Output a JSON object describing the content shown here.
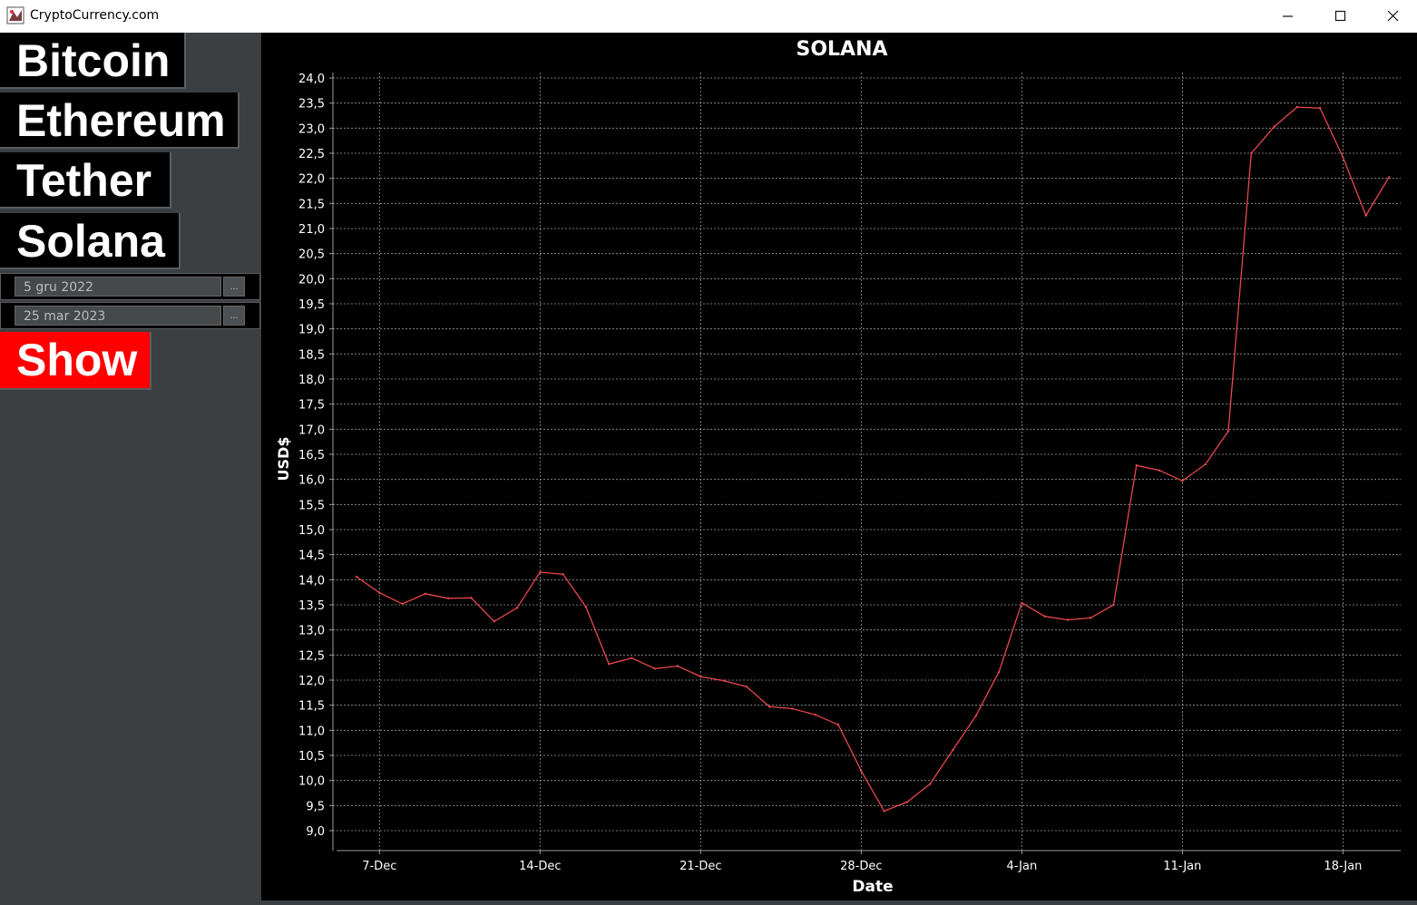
{
  "window": {
    "title": "CryptoCurrency.com",
    "controls": {
      "minimize": "—",
      "maximize": "☐",
      "close": "✕"
    }
  },
  "sidebar": {
    "coins": [
      "Bitcoin",
      "Ethereum",
      "Tether",
      "Solana"
    ],
    "date_from": "5 gru 2022",
    "date_to": "25 mar 2023",
    "picker_label": "...",
    "show_label": "Show"
  },
  "colors": {
    "line": "#e8474c",
    "background": "#000000",
    "sidebar": "#3c3f41",
    "show_button": "#ff0000"
  },
  "chart_data": {
    "type": "line",
    "title": "SOLANA",
    "xlabel": "Date",
    "ylabel": "USD$",
    "ylim": [
      9.0,
      24.0
    ],
    "y_ticks": [
      "9,0",
      "9,5",
      "10,0",
      "10,5",
      "11,0",
      "11,5",
      "12,0",
      "12,5",
      "13,0",
      "13,5",
      "14,0",
      "14,5",
      "15,0",
      "15,5",
      "16,0",
      "16,5",
      "17,0",
      "17,5",
      "18,0",
      "18,5",
      "19,0",
      "19,5",
      "20,0",
      "20,5",
      "21,0",
      "21,5",
      "22,0",
      "22,5",
      "23,0",
      "23,5",
      "24,0"
    ],
    "x_ticks": [
      "7-Dec",
      "14-Dec",
      "21-Dec",
      "28-Dec",
      "4-Jan",
      "11-Jan",
      "18-Jan"
    ],
    "grid": true,
    "series": [
      {
        "x": [
          "2022-12-06",
          "2022-12-07",
          "2022-12-08",
          "2022-12-09",
          "2022-12-10",
          "2022-12-11",
          "2022-12-12",
          "2022-12-13",
          "2022-12-14",
          "2022-12-15",
          "2022-12-16",
          "2022-12-17",
          "2022-12-18",
          "2022-12-19",
          "2022-12-20",
          "2022-12-21",
          "2022-12-22",
          "2022-12-23",
          "2022-12-24",
          "2022-12-25",
          "2022-12-26",
          "2022-12-27",
          "2022-12-28",
          "2022-12-29",
          "2022-12-30",
          "2022-12-31",
          "2023-01-01",
          "2023-01-02",
          "2023-01-03",
          "2023-01-04",
          "2023-01-05",
          "2023-01-06",
          "2023-01-07",
          "2023-01-08",
          "2023-01-09",
          "2023-01-10",
          "2023-01-11",
          "2023-01-12",
          "2023-01-13",
          "2023-01-14",
          "2023-01-15",
          "2023-01-16",
          "2023-01-17",
          "2023-01-18",
          "2023-01-19",
          "2023-01-20"
        ],
        "values": [
          14.06,
          13.74,
          13.52,
          13.72,
          13.63,
          13.64,
          13.17,
          13.44,
          14.15,
          14.11,
          13.46,
          12.32,
          12.44,
          12.23,
          12.28,
          12.07,
          11.99,
          11.87,
          11.47,
          11.43,
          11.31,
          11.11,
          10.19,
          9.39,
          9.57,
          9.93,
          10.61,
          11.29,
          12.16,
          13.54,
          13.27,
          13.2,
          13.24,
          13.5,
          16.28,
          16.18,
          15.97,
          16.3,
          16.96,
          22.5,
          23.03,
          23.42,
          23.4,
          22.42,
          21.26,
          22.02
        ]
      }
    ]
  }
}
